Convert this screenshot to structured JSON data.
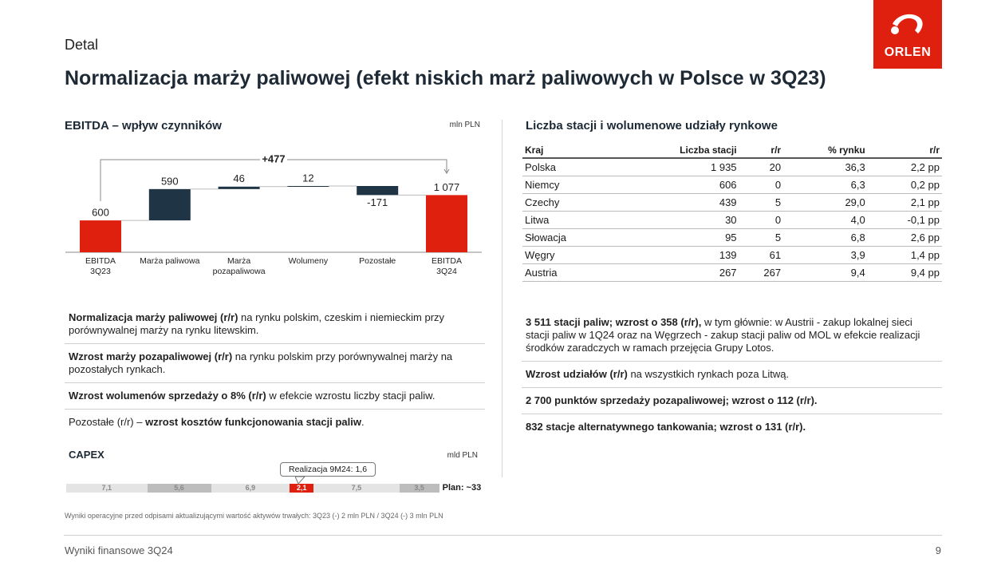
{
  "header": {
    "section": "Detal",
    "title": "Normalizacja marży paliwowej (efekt niskich marż paliwowych w Polsce w 3Q23)",
    "logo": "ORLEN"
  },
  "waterfall": {
    "type": "waterfall",
    "title": "EBITDA – wpływ czynników",
    "unit": "mln PLN",
    "categories": [
      "EBITDA\n3Q23",
      "Marża paliwowa",
      "Marża\npozapaliwowa",
      "Wolumeny",
      "Pozostałe",
      "EBITDA\n3Q24"
    ],
    "values": [
      600,
      590,
      46,
      12,
      -171,
      1077
    ],
    "value_labels": [
      "600",
      "590",
      "46",
      "12",
      "-171",
      "1 077"
    ],
    "totals": [
      0,
      5
    ],
    "colors": [
      "#e0200f",
      "#1f3545",
      "#1f3545",
      "#1f3545",
      "#1f3545",
      "#e0200f"
    ],
    "bridge_label": "+477"
  },
  "left_notes": [
    [
      {
        "text": "Normalizacja marży paliwowej (r/r)",
        "bold": true
      },
      {
        "text": " na rynku polskim, czeskim i niemieckim przy porównywalnej marży na rynku litewskim.",
        "bold": false
      }
    ],
    [
      {
        "text": "Wzrost marży pozapaliwowej (r/r)",
        "bold": true
      },
      {
        "text": " na rynku polskim przy porównywalnej marży na pozostałych rynkach.",
        "bold": false
      }
    ],
    [
      {
        "text": "Wzrost wolumenów sprzedaży o 8% (r/r)",
        "bold": true
      },
      {
        "text": " w efekcie wzrostu liczby stacji paliw.",
        "bold": false
      }
    ],
    [
      {
        "text": "Pozostałe (r/r) – ",
        "bold": false
      },
      {
        "text": "wzrost kosztów funkcjonowania stacji paliw",
        "bold": true
      },
      {
        "text": ".",
        "bold": false
      }
    ]
  ],
  "capex": {
    "title": "CAPEX",
    "unit": "mld PLN",
    "values": [
      7.1,
      5.6,
      6.9,
      2.1,
      7.5,
      3.5
    ],
    "value_labels": [
      "7,1",
      "5,6",
      "6,9",
      "2,1",
      "7,5",
      "3,5"
    ],
    "colors": [
      "#e4e4e4",
      "#bdbdbd",
      "#e4e4e4",
      "#e0200f",
      "#e4e4e4",
      "#bdbdbd"
    ],
    "plan_label": "Plan: ~33",
    "callout": "Realizacja 9M24: 1,6"
  },
  "footnote": "Wyniki operacyjne przed odpisami aktualizującymi wartość aktywów trwałych: 3Q23 (-) 2 mln PLN / 3Q24 (-) 3 mln PLN",
  "table": {
    "title": "Liczba stacji i wolumenowe udziały rynkowe",
    "header": [
      "Kraj",
      "Liczba stacji",
      "r/r",
      "% rynku",
      "r/r"
    ],
    "rows": [
      [
        "Polska",
        "1 935",
        "20",
        "36,3",
        "2,2 pp"
      ],
      [
        "Niemcy",
        "606",
        "0",
        "6,3",
        "0,2 pp"
      ],
      [
        "Czechy",
        "439",
        "5",
        "29,0",
        "2,1 pp"
      ],
      [
        "Litwa",
        "30",
        "0",
        "4,0",
        "-0,1 pp"
      ],
      [
        "Słowacja",
        "95",
        "5",
        "6,8",
        "2,6 pp"
      ],
      [
        "Węgry",
        "139",
        "61",
        "3,9",
        "1,4 pp"
      ],
      [
        "Austria",
        "267",
        "267",
        "9,4",
        "9,4 pp"
      ]
    ]
  },
  "right_notes": [
    [
      {
        "text": "3 511 stacji paliw; wzrost o 358 (r/r),",
        "bold": true
      },
      {
        "text": " w tym głównie: w Austrii - zakup lokalnej sieci stacji paliw w 1Q24 oraz na Węgrzech - zakup stacji paliw od MOL w efekcie realizacji środków zaradczych w ramach przejęcia Grupy Lotos.",
        "bold": false
      }
    ],
    [
      {
        "text": "Wzrost udziałów (r/r)",
        "bold": true
      },
      {
        "text": " na wszystkich rynkach poza Litwą.",
        "bold": false
      }
    ],
    [
      {
        "text": "2 700 punktów sprzedaży pozapaliwowej; wzrost o 112 (r/r).",
        "bold": true
      }
    ],
    [
      {
        "text": "832 stacje alternatywnego tankowania; wzrost o 131 (r/r).",
        "bold": true
      }
    ]
  ],
  "footer": {
    "text": "Wyniki finansowe 3Q24",
    "page": "9"
  }
}
